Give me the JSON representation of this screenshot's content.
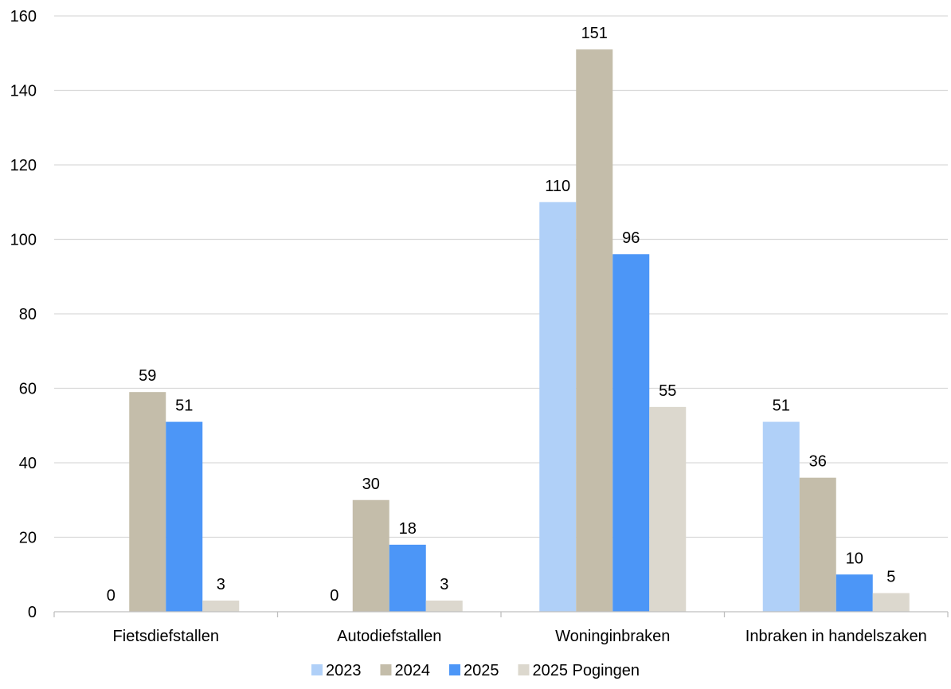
{
  "chart_data": {
    "type": "bar",
    "categories": [
      "Fietsdiefstallen",
      "Autodiefstallen",
      "Woninginbraken",
      "Inbraken in handelszaken"
    ],
    "series": [
      {
        "name": "2023",
        "values": [
          0,
          0,
          110,
          51
        ],
        "color": "#b0d0f8"
      },
      {
        "name": "2024",
        "values": [
          59,
          30,
          151,
          36
        ],
        "color": "#c4bdaa"
      },
      {
        "name": "2025",
        "values": [
          51,
          18,
          96,
          10
        ],
        "color": "#4c96f7"
      },
      {
        "name": "2025 Pogingen",
        "values": [
          3,
          3,
          55,
          5
        ],
        "color": "#dcd8ce"
      }
    ],
    "ylim": [
      0,
      160
    ],
    "yticks": [
      0,
      20,
      40,
      60,
      80,
      100,
      120,
      140,
      160
    ],
    "grid": true,
    "legend": "bottom",
    "data_labels": true
  }
}
